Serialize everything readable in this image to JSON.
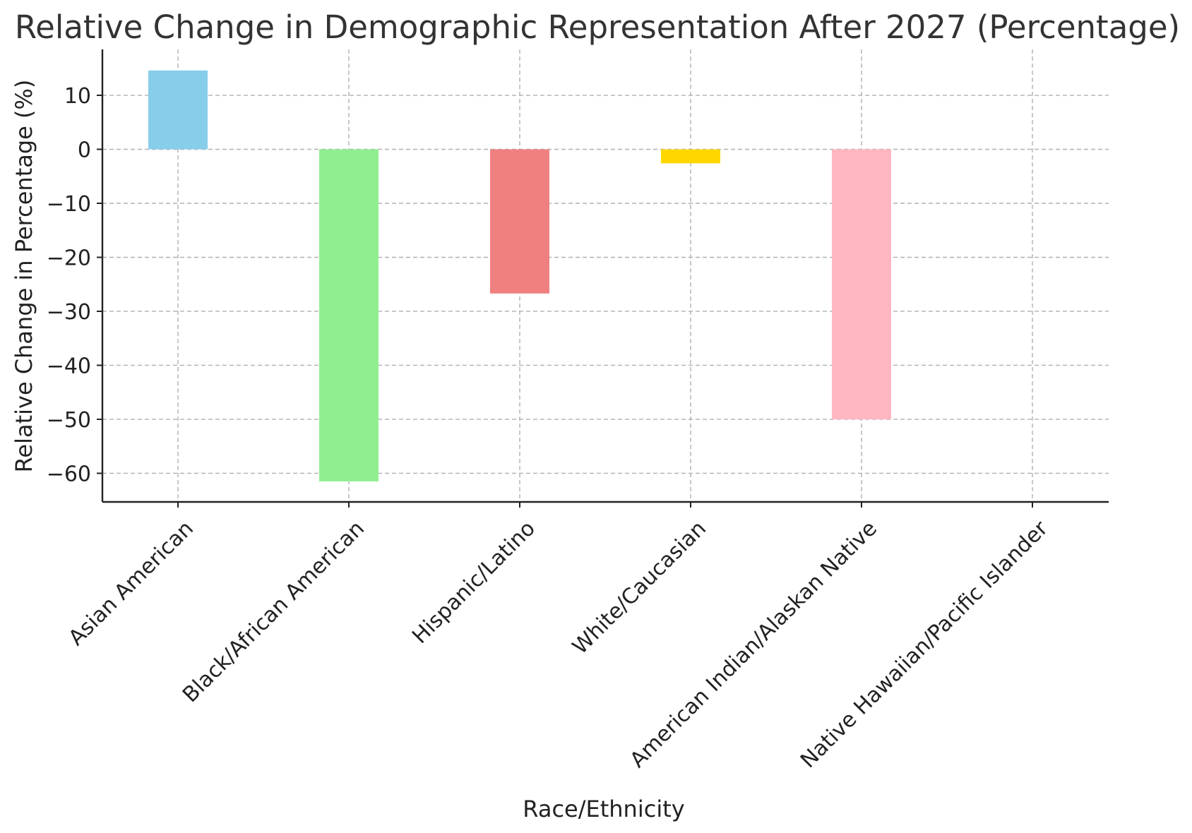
{
  "chart_data": {
    "type": "bar",
    "title": "Relative Change in Demographic Representation After 2027 (Percentage)",
    "xlabel": "Race/Ethnicity",
    "ylabel": "Relative Change in Percentage (%)",
    "categories": [
      "Asian American",
      "Black/African American",
      "Hispanic/Latino",
      "White/Caucasian",
      "American Indian/Alaskan Native",
      "Native Hawaiian/Pacific Islander"
    ],
    "values": [
      14.6,
      -61.5,
      -26.7,
      -2.6,
      -50.0,
      0
    ],
    "colors": [
      "#87ceeb",
      "#90ee90",
      "#f08080",
      "#ffd700",
      "#ffb6c1",
      "#d3d3d3"
    ],
    "yticks": [
      10,
      0,
      -10,
      -20,
      -30,
      -40,
      -50,
      -60
    ],
    "ytick_labels": [
      "10",
      "0",
      "−10",
      "−20",
      "−30",
      "−40",
      "−50",
      "−60"
    ],
    "ylim": [
      -65.3,
      18.5
    ],
    "grid": true
  }
}
